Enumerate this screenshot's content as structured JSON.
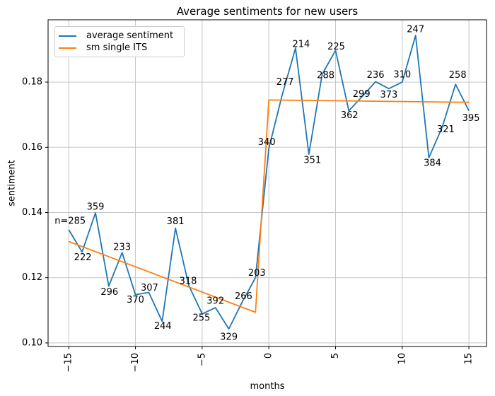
{
  "chart_data": {
    "type": "line",
    "title": "Average sentiments for new users",
    "xlabel": "months",
    "ylabel": "sentiment",
    "xlim": [
      -16.55,
      16.32
    ],
    "ylim": [
      0.0989,
      0.1991
    ],
    "grid": true,
    "axis_color": "#000000",
    "grid_color": "#c6c6c6",
    "x_ticks": {
      "values": [
        -15,
        -10,
        -5,
        0,
        5,
        10,
        15
      ],
      "labels": [
        "−15",
        "−10",
        "−5",
        "0",
        "5",
        "10",
        "15"
      ],
      "rotation": 90
    },
    "y_ticks": {
      "values": [
        0.1,
        0.12,
        0.14,
        0.16,
        0.18
      ],
      "labels": [
        "0.10",
        "0.12",
        "0.14",
        "0.16",
        "0.18"
      ]
    },
    "legend": {
      "position": "upper left",
      "entries": [
        {
          "label": "average sentiment",
          "color": "#1f77b4"
        },
        {
          "label": "sm single ITS",
          "color": "#ff7f0e"
        }
      ]
    },
    "series": [
      {
        "name": "average sentiment",
        "color": "#1f77b4",
        "points": [
          {
            "month": -15,
            "value": 0.1347,
            "label": "n=285",
            "dx": 2,
            "dy": -12
          },
          {
            "month": -14,
            "value": 0.1279,
            "label": "222",
            "dx": 1,
            "dy": 8
          },
          {
            "month": -13,
            "value": 0.1399,
            "label": "359",
            "dx": 0,
            "dy": -8
          },
          {
            "month": -12,
            "value": 0.1174,
            "label": "296",
            "dx": 1,
            "dy": 9
          },
          {
            "month": -11,
            "value": 0.1277,
            "label": "233",
            "dx": 0,
            "dy": -7
          },
          {
            "month": -10,
            "value": 0.1148,
            "label": "370",
            "dx": 0,
            "dy": 8
          },
          {
            "month": -9,
            "value": 0.1155,
            "label": "307",
            "dx": 1,
            "dy": -6
          },
          {
            "month": -8,
            "value": 0.1066,
            "label": "244",
            "dx": 1,
            "dy": 7
          },
          {
            "month": -7,
            "value": 0.1352,
            "label": "381",
            "dx": 0,
            "dy": -9
          },
          {
            "month": -6,
            "value": 0.1176,
            "label": "318",
            "dx": -1,
            "dy": -6
          },
          {
            "month": -5,
            "value": 0.1089,
            "label": "255",
            "dx": -1,
            "dy": 6
          },
          {
            "month": -4,
            "value": 0.1108,
            "label": "392",
            "dx": 0,
            "dy": -9
          },
          {
            "month": -3,
            "value": 0.1043,
            "label": "329",
            "dx": 0,
            "dy": 12
          },
          {
            "month": -2,
            "value": 0.1125,
            "label": "266",
            "dx": 2,
            "dy": -8
          },
          {
            "month": -1,
            "value": 0.12,
            "label": "203",
            "dx": 2,
            "dy": -6
          },
          {
            "month": 0,
            "value": 0.1597,
            "label": "340",
            "dx": -3,
            "dy": -8
          },
          {
            "month": 1,
            "value": 0.176,
            "label": "277",
            "dx": 4,
            "dy": -18
          },
          {
            "month": 2,
            "value": 0.1904,
            "label": "214",
            "dx": 8,
            "dy": -5
          },
          {
            "month": 3,
            "value": 0.1579,
            "label": "351",
            "dx": 5,
            "dy": 9
          },
          {
            "month": 4,
            "value": 0.1824,
            "label": "288",
            "dx": 5,
            "dy": 2
          },
          {
            "month": 5,
            "value": 0.1897,
            "label": "225",
            "dx": 1,
            "dy": -5
          },
          {
            "month": 6,
            "value": 0.1712,
            "label": "362",
            "dx": 1,
            "dy": 7
          },
          {
            "month": 7,
            "value": 0.1756,
            "label": "299",
            "dx": -1,
            "dy": -3
          },
          {
            "month": 8,
            "value": 0.1801,
            "label": "236",
            "dx": 0,
            "dy": -9
          },
          {
            "month": 9,
            "value": 0.178,
            "label": "373",
            "dx": 0,
            "dy": 9
          },
          {
            "month": 10,
            "value": 0.18,
            "label": "310",
            "dx": 0,
            "dy": -10
          },
          {
            "month": 11,
            "value": 0.1943,
            "label": "247",
            "dx": 0,
            "dy": -8
          },
          {
            "month": 12,
            "value": 0.1568,
            "label": "384",
            "dx": 5,
            "dy": 8
          },
          {
            "month": 13,
            "value": 0.1662,
            "label": "321",
            "dx": 5,
            "dy": 4
          },
          {
            "month": 14,
            "value": 0.1793,
            "label": "258",
            "dx": 3,
            "dy": -13
          },
          {
            "month": 15,
            "value": 0.1712,
            "label": "395",
            "dx": 3,
            "dy": 11
          }
        ]
      },
      {
        "name": "sm single ITS",
        "color": "#ff7f0e",
        "points": [
          {
            "month": -15,
            "value": 0.1311
          },
          {
            "month": -1,
            "value": 0.1094
          },
          {
            "month": 0,
            "value": 0.1745
          },
          {
            "month": 15,
            "value": 0.1738
          }
        ]
      }
    ]
  }
}
